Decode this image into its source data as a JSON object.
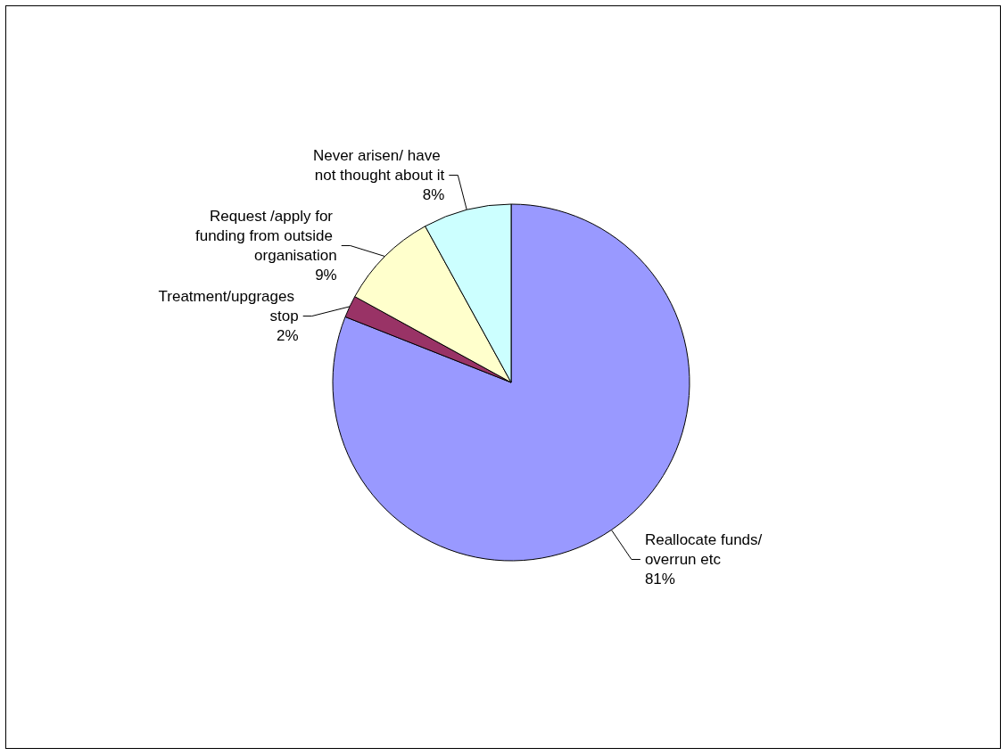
{
  "chart_data": {
    "type": "pie",
    "categories": [
      "Reallocate funds/ overrun etc",
      "Treatment/upgrages stop",
      "Request /apply for funding from outside organisation",
      "Never arisen/ have not thought about it"
    ],
    "values": [
      81,
      2,
      9,
      8
    ],
    "value_labels": [
      "81%",
      "2%",
      "9%",
      "8%"
    ],
    "colors": [
      "#9999ff",
      "#993366",
      "#ffffcc",
      "#ccffff"
    ],
    "legend": false
  }
}
